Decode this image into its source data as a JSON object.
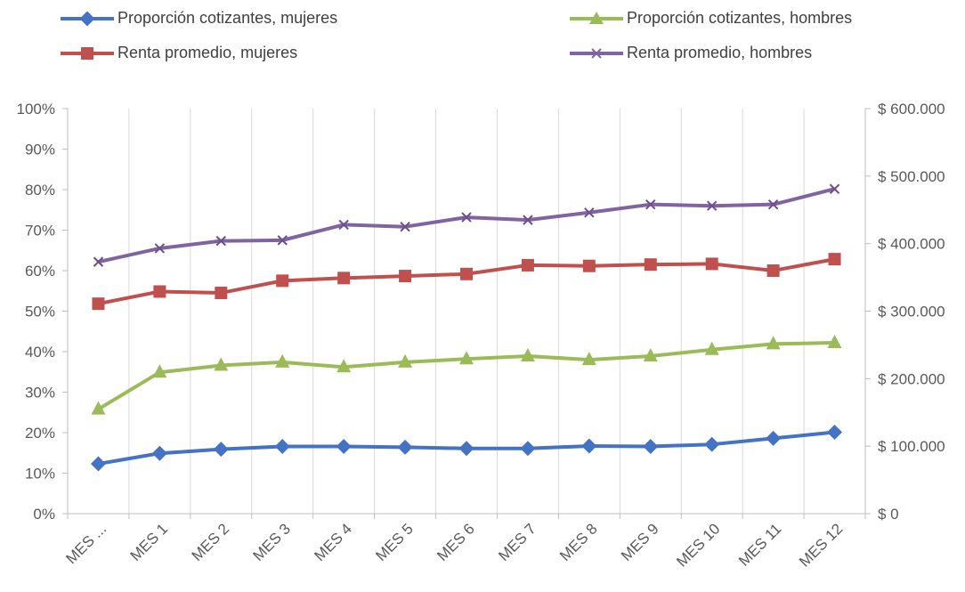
{
  "chart_data": {
    "type": "line",
    "categories": [
      "MES ...",
      "MES 1",
      "MES 2",
      "MES 3",
      "MES 4",
      "MES 5",
      "MES 6",
      "MES 7",
      "MES 8",
      "MES 9",
      "MES 10",
      "MES 11",
      "MES 12"
    ],
    "y_left": {
      "ticks": [
        "0%",
        "10%",
        "20%",
        "30%",
        "40%",
        "50%",
        "60%",
        "70%",
        "80%",
        "90%",
        "100%"
      ],
      "min": 0,
      "max": 1
    },
    "y_right": {
      "ticks": [
        "$ 0",
        "$ 100.000",
        "$ 200.000",
        "$ 300.000",
        "$ 400.000",
        "$ 500.000",
        "$ 600.000"
      ],
      "min": 0,
      "max": 600000
    },
    "grid": "vertical",
    "legend_position": "top",
    "series": [
      {
        "name": "Proporción cotizantes, mujeres",
        "axis": "left",
        "color": "#4472C4",
        "marker": "diamond",
        "values": [
          0.123,
          0.149,
          0.159,
          0.166,
          0.166,
          0.164,
          0.161,
          0.161,
          0.167,
          0.166,
          0.171,
          0.186,
          0.201
        ]
      },
      {
        "name": "Proporción cotizantes, hombres",
        "axis": "left",
        "color": "#9BBB59",
        "marker": "triangle",
        "values": [
          0.258,
          0.349,
          0.366,
          0.374,
          0.362,
          0.374,
          0.382,
          0.389,
          0.38,
          0.389,
          0.405,
          0.419,
          0.422
        ]
      },
      {
        "name": "Renta promedio, mujeres",
        "axis": "right",
        "color": "#C0504D",
        "marker": "square",
        "values": [
          311000,
          329000,
          327000,
          345000,
          349000,
          352000,
          355000,
          368000,
          367000,
          369000,
          370000,
          360000,
          377000
        ]
      },
      {
        "name": "Renta promedio, hombres",
        "axis": "right",
        "color": "#8064A2",
        "marker": "x",
        "values": [
          373000,
          393000,
          404000,
          405000,
          428000,
          425000,
          439000,
          435000,
          446000,
          458000,
          456000,
          458000,
          481000
        ]
      }
    ]
  }
}
